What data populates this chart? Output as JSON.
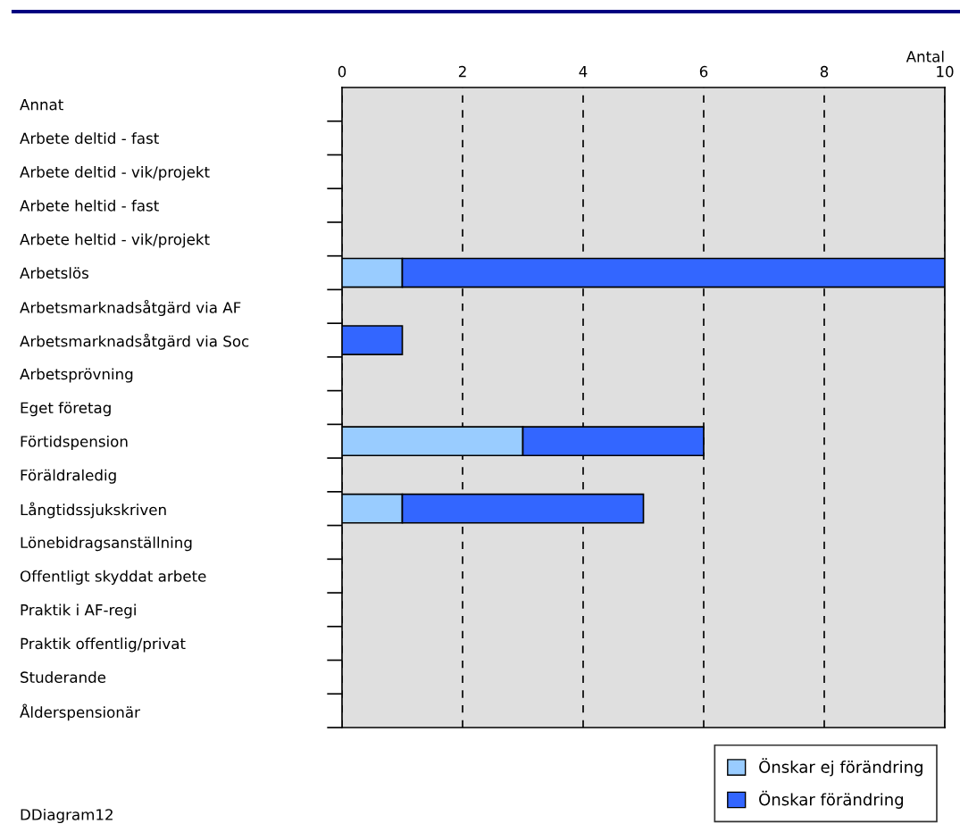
{
  "chart_data": {
    "type": "bar",
    "orientation": "horizontal",
    "stacked": true,
    "xlabel": "Antal",
    "categories": [
      "Annat",
      "Arbete deltid - fast",
      "Arbete deltid - vik/projekt",
      "Arbete heltid - fast",
      "Arbete heltid - vik/projekt",
      "Arbetslös",
      "Arbetsmarknadsåtgärd via AF",
      "Arbetsmarknadsåtgärd via Soc",
      "Arbetsprövning",
      "Eget företag",
      "Förtidspension",
      "Föräldraledig",
      "Långtidssjukskriven",
      "Lönebidragsanställning",
      "Offentligt skyddat arbete",
      "Praktik i AF-regi",
      "Praktik offentlig/privat",
      "Studerande",
      "Ålderspensionär"
    ],
    "series": [
      {
        "name": "Önskar ej förändring",
        "color": "#99ccff",
        "values": [
          0,
          0,
          0,
          0,
          0,
          1,
          0,
          0,
          0,
          0,
          3,
          0,
          1,
          0,
          0,
          0,
          0,
          0,
          0
        ]
      },
      {
        "name": "Önskar förändring",
        "color": "#3366ff",
        "values": [
          0,
          0,
          0,
          0,
          0,
          9,
          0,
          1,
          0,
          0,
          3,
          0,
          4,
          0,
          0,
          0,
          0,
          0,
          0
        ]
      }
    ],
    "xlim": [
      0,
      10
    ],
    "xticks": [
      0,
      2,
      4,
      6,
      8,
      10
    ],
    "grid": "x",
    "legend": "bottom right",
    "annotations": [
      "DDiagram12"
    ]
  }
}
